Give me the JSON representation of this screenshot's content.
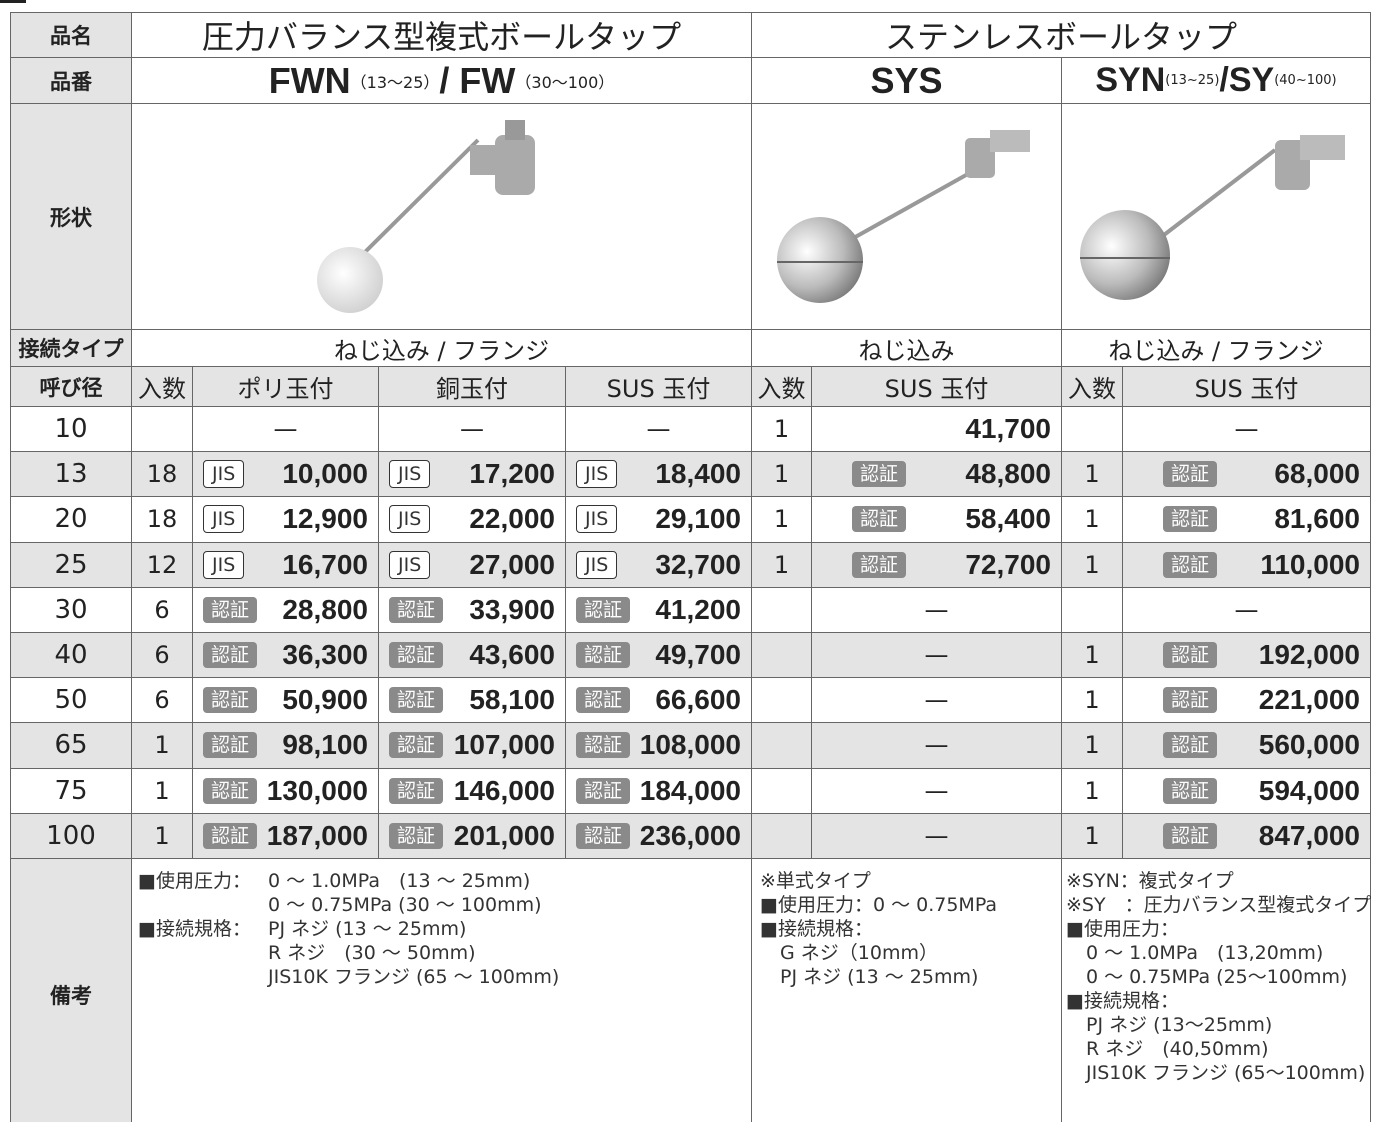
{
  "labels": {
    "name": "品名",
    "model": "品番",
    "shape": "形状",
    "connection": "接続タイプ",
    "size": "呼び径",
    "notes": "備考"
  },
  "names": [
    "圧力バランス型複式ボールタップ",
    "ステンレスボールタップ"
  ],
  "models": [
    [
      {
        "code": "FWN",
        "range": "（13～25）"
      },
      {
        "code": "/ FW",
        "range": "（30～100）"
      }
    ],
    [
      {
        "code": "SYS"
      }
    ],
    [
      {
        "code": "SYN",
        "range": "(13~25)"
      },
      {
        "code": "/SY",
        "range": "(40~100)"
      }
    ]
  ],
  "connections": [
    "ねじ込み / フランジ",
    "ねじ込み",
    "ねじ込み / フランジ"
  ],
  "column_headers": [
    "入数",
    "ポリ玉付",
    "銅玉付",
    "SUS 玉付",
    "入数",
    "SUS 玉付",
    "入数",
    "SUS 玉付"
  ],
  "rows": [
    {
      "size": "10",
      "cells": [
        null,
        "—",
        "—",
        "—",
        "1",
        {
          "price": "41,700"
        },
        null,
        "—"
      ]
    },
    {
      "size": "13",
      "cells": [
        "18",
        {
          "badge": "JIS",
          "price": "10,000"
        },
        {
          "badge": "JIS",
          "price": "17,200"
        },
        {
          "badge": "JIS",
          "price": "18,400"
        },
        "1",
        {
          "badge": "認証",
          "price": "48,800"
        },
        "1",
        {
          "badge": "認証",
          "price": "68,000"
        }
      ]
    },
    {
      "size": "20",
      "cells": [
        "18",
        {
          "badge": "JIS",
          "price": "12,900"
        },
        {
          "badge": "JIS",
          "price": "22,000"
        },
        {
          "badge": "JIS",
          "price": "29,100"
        },
        "1",
        {
          "badge": "認証",
          "price": "58,400"
        },
        "1",
        {
          "badge": "認証",
          "price": "81,600"
        }
      ]
    },
    {
      "size": "25",
      "cells": [
        "12",
        {
          "badge": "JIS",
          "price": "16,700"
        },
        {
          "badge": "JIS",
          "price": "27,000"
        },
        {
          "badge": "JIS",
          "price": "32,700"
        },
        "1",
        {
          "badge": "認証",
          "price": "72,700"
        },
        "1",
        {
          "badge": "認証",
          "price": "110,000"
        }
      ]
    },
    {
      "size": "30",
      "cells": [
        "6",
        {
          "badge": "認証",
          "price": "28,800"
        },
        {
          "badge": "認証",
          "price": "33,900"
        },
        {
          "badge": "認証",
          "price": "41,200"
        },
        null,
        "—",
        null,
        "—"
      ]
    },
    {
      "size": "40",
      "cells": [
        "6",
        {
          "badge": "認証",
          "price": "36,300"
        },
        {
          "badge": "認証",
          "price": "43,600"
        },
        {
          "badge": "認証",
          "price": "49,700"
        },
        null,
        "—",
        "1",
        {
          "badge": "認証",
          "price": "192,000"
        }
      ]
    },
    {
      "size": "50",
      "cells": [
        "6",
        {
          "badge": "認証",
          "price": "50,900"
        },
        {
          "badge": "認証",
          "price": "58,100"
        },
        {
          "badge": "認証",
          "price": "66,600"
        },
        null,
        "—",
        "1",
        {
          "badge": "認証",
          "price": "221,000"
        }
      ]
    },
    {
      "size": "65",
      "cells": [
        "1",
        {
          "badge": "認証",
          "price": "98,100"
        },
        {
          "badge": "認証",
          "price": "107,000"
        },
        {
          "badge": "認証",
          "price": "108,000"
        },
        null,
        "—",
        "1",
        {
          "badge": "認証",
          "price": "560,000"
        }
      ]
    },
    {
      "size": "75",
      "cells": [
        "1",
        {
          "badge": "認証",
          "price": "130,000"
        },
        {
          "badge": "認証",
          "price": "146,000"
        },
        {
          "badge": "認証",
          "price": "184,000"
        },
        null,
        "—",
        "1",
        {
          "badge": "認証",
          "price": "594,000"
        }
      ]
    },
    {
      "size": "100",
      "cells": [
        "1",
        {
          "badge": "認証",
          "price": "187,000"
        },
        {
          "badge": "認証",
          "price": "201,000"
        },
        {
          "badge": "認証",
          "price": "236,000"
        },
        null,
        "—",
        "1",
        {
          "badge": "認証",
          "price": "847,000"
        }
      ]
    }
  ],
  "notes": [
    [
      "■使用圧力：",
      "0 ～ 1.0MPa　(13 ～ 25mm)",
      "0 ～ 0.75MPa (30 ～ 100mm)",
      "■接続規格：",
      "PJ ネジ (13 ～ 25mm)",
      "R ネジ　(30 ～ 50mm)",
      "JIS10K フランジ (65 ～ 100mm)"
    ],
    [
      "※単式タイプ",
      "■使用圧力：0 ～ 0.75MPa",
      "■接続規格：",
      "G ネジ（10mm）",
      "PJ ネジ (13 ～ 25mm)"
    ],
    [
      "※SYN：複式タイプ",
      "※SY　：圧力バランス型複式タイプ",
      "■使用圧力：",
      "0 ～ 1.0MPa　(13,20mm)",
      "0 ～ 0.75MPa (25～100mm)",
      "■接続規格：",
      "PJ ネジ (13～25mm)",
      "R ネジ　(40,50mm)",
      "JIS10K フランジ (65～100mm)"
    ]
  ]
}
